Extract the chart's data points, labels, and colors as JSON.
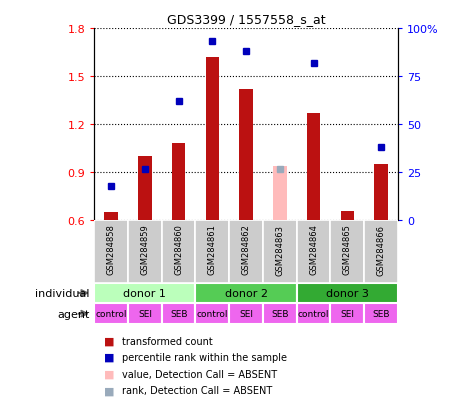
{
  "title": "GDS3399 / 1557558_s_at",
  "samples": [
    "GSM284858",
    "GSM284859",
    "GSM284860",
    "GSM284861",
    "GSM284862",
    "GSM284863",
    "GSM284864",
    "GSM284865",
    "GSM284866"
  ],
  "transformed_count": [
    0.65,
    1.0,
    1.08,
    1.62,
    1.42,
    null,
    1.27,
    0.66,
    0.95
  ],
  "transformed_count_absent": [
    null,
    null,
    null,
    null,
    null,
    0.94,
    null,
    null,
    null
  ],
  "percentile_rank": [
    18,
    27,
    62,
    93,
    88,
    null,
    82,
    null,
    38
  ],
  "percentile_rank_absent": [
    null,
    null,
    null,
    null,
    null,
    27,
    null,
    null,
    null
  ],
  "ylim_left": [
    0.6,
    1.8
  ],
  "ylim_right": [
    0,
    100
  ],
  "yticks_left": [
    0.6,
    0.9,
    1.2,
    1.5,
    1.8
  ],
  "yticks_right": [
    0,
    25,
    50,
    75,
    100
  ],
  "ytick_labels_right": [
    "0",
    "25",
    "50",
    "75",
    "100%"
  ],
  "donors": [
    {
      "label": "donor 1",
      "span": [
        0,
        3
      ],
      "color": "#bbffbb"
    },
    {
      "label": "donor 2",
      "span": [
        3,
        6
      ],
      "color": "#55cc55"
    },
    {
      "label": "donor 3",
      "span": [
        6,
        9
      ],
      "color": "#33aa33"
    }
  ],
  "agents": [
    "control",
    "SEI",
    "SEB",
    "control",
    "SEI",
    "SEB",
    "control",
    "SEI",
    "SEB"
  ],
  "agent_color": "#ee66ee",
  "bar_color_present": "#bb1111",
  "bar_color_absent": "#ffbbbb",
  "dot_color_present": "#0000bb",
  "dot_color_absent": "#99aabb",
  "sample_bg_color": "#cccccc",
  "n_samples": 9,
  "legend_items": [
    {
      "color": "#bb1111",
      "marker": "s",
      "label": "transformed count"
    },
    {
      "color": "#0000bb",
      "marker": "s",
      "label": "percentile rank within the sample"
    },
    {
      "color": "#ffbbbb",
      "marker": "s",
      "label": "value, Detection Call = ABSENT"
    },
    {
      "color": "#99aabb",
      "marker": "s",
      "label": "rank, Detection Call = ABSENT"
    }
  ]
}
